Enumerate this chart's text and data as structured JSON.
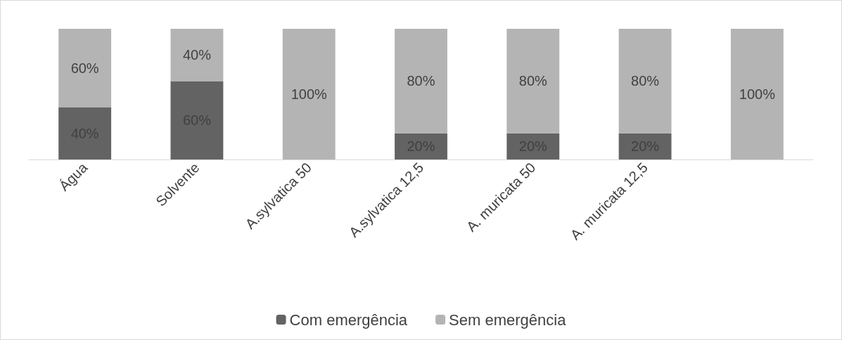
{
  "chart_data": {
    "type": "bar",
    "stacked": true,
    "categories": [
      "Água",
      "Solvente",
      "A.sylvatica 50",
      "A.sylvatica 12,5",
      "A. muricata 50",
      "A. muricata 12,5",
      null
    ],
    "series": [
      {
        "name": "Com emergência",
        "color": "#636363",
        "values": [
          40,
          60,
          null,
          20,
          20,
          20,
          null
        ],
        "value_labels": [
          "40%",
          "60%",
          null,
          "20%",
          "20%",
          "20%",
          null
        ]
      },
      {
        "name": "Sem emergência",
        "color": "#b4b4b4",
        "values": [
          60,
          40,
          100,
          80,
          80,
          80,
          100
        ],
        "value_labels": [
          "60%",
          "40%",
          "100%",
          "80%",
          "80%",
          "80%",
          "100%"
        ]
      }
    ],
    "legend": "bottom"
  }
}
